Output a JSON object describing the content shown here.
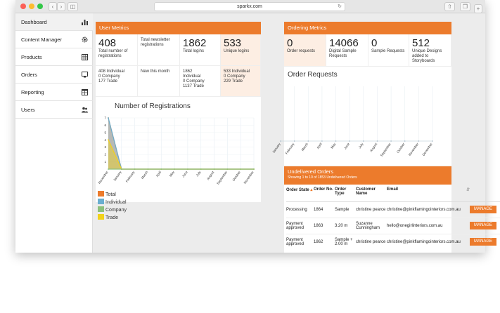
{
  "browser": {
    "url": "sparkx.com"
  },
  "sidebar": {
    "items": [
      {
        "label": "Dashboard"
      },
      {
        "label": "Content Manager"
      },
      {
        "label": "Products"
      },
      {
        "label": "Orders"
      },
      {
        "label": "Reporting"
      },
      {
        "label": "Users"
      }
    ]
  },
  "user_metrics": {
    "title": "User Metrics",
    "cells": [
      {
        "value": "408",
        "label": "Total number of registrations"
      },
      {
        "value": "",
        "label": "Total newsletter registrations"
      },
      {
        "value": "1862",
        "label": "Total logins"
      },
      {
        "value": "533",
        "label": "Unique logins"
      }
    ],
    "subcells": [
      {
        "lines": [
          "408 Individual",
          "0 Company",
          "177 Trade"
        ]
      },
      {
        "lines": [
          "New this month"
        ]
      },
      {
        "lines": [
          "1862",
          "Individual",
          "0 Company",
          "1137 Trade"
        ]
      },
      {
        "lines": [
          "533 Individual",
          "0 Company",
          "229 Trade"
        ]
      }
    ]
  },
  "registrations_chart": {
    "title": "Number of Registrations",
    "legend": [
      "Total",
      "Individual",
      "Company",
      "Trade"
    ]
  },
  "ordering_metrics": {
    "title": "Ordering Metrics",
    "cells": [
      {
        "value": "0",
        "label": "Order requests"
      },
      {
        "value": "14066",
        "label": "Digital Sample Requests"
      },
      {
        "value": "0",
        "label": "Sample Requests"
      },
      {
        "value": "512",
        "label": "Unique Designs added to Storyboards"
      }
    ]
  },
  "order_requests_chart": {
    "title": "Order Requests"
  },
  "undelivered": {
    "title": "Undelivered Orders",
    "subtitle": "Showing 1 to 10 of 1853 Undelivered Orders",
    "columns": [
      "Order State",
      "Order No.",
      "Order Type",
      "Customer Name",
      "Email",
      ""
    ],
    "rows": [
      {
        "state": "Processing",
        "no": "1864",
        "type": "Sample",
        "customer": "christine pearce",
        "email": "christine@pinkflamingointeriors.com.au",
        "action": "MANAGE"
      },
      {
        "state": "Payment approved",
        "no": "1863",
        "type": "3.20 m",
        "customer": "Suzanne Cunningham",
        "email": "hello@onegirlinteriors.com.au",
        "action": "MANAGE"
      },
      {
        "state": "Payment approved",
        "no": "1862",
        "type": "Sample + 2.00 m",
        "customer": "christine pearce",
        "email": "christine@pinkflamingointeriors.com.au",
        "action": "MANAGE"
      }
    ]
  },
  "chart_data": [
    {
      "type": "area",
      "title": "Number of Registrations",
      "categories": [
        "November",
        "January",
        "February",
        "March",
        "April",
        "May",
        "June",
        "July",
        "August",
        "September",
        "October",
        "November"
      ],
      "yticks": [
        1,
        2,
        3,
        4,
        5,
        6,
        7
      ],
      "ylim": [
        0,
        7
      ],
      "grid": true,
      "legend_position": "bottom-left",
      "series": [
        {
          "name": "Total",
          "color": "#ec7b2c",
          "values": [
            7,
            0,
            0,
            0,
            0,
            0,
            0,
            0,
            0,
            0,
            0,
            0
          ]
        },
        {
          "name": "Individual",
          "color": "#6aaed0",
          "values": [
            7,
            0,
            0,
            0,
            0,
            0,
            0,
            0,
            0,
            0,
            0,
            0
          ]
        },
        {
          "name": "Company",
          "color": "#8cc07c",
          "values": [
            0,
            0,
            0,
            0,
            0,
            0,
            0,
            0,
            0,
            0,
            0,
            0
          ]
        },
        {
          "name": "Trade",
          "color": "#f2d21b",
          "values": [
            4,
            0,
            0,
            0,
            0,
            0,
            0,
            0,
            0,
            0,
            0,
            0
          ]
        }
      ]
    },
    {
      "type": "line",
      "title": "Order Requests",
      "categories": [
        "January",
        "February",
        "March",
        "April",
        "May",
        "June",
        "July",
        "August",
        "September",
        "October",
        "November",
        "December"
      ],
      "values": [
        0,
        0,
        0,
        0,
        0,
        0,
        0,
        0,
        0,
        0,
        0,
        0
      ],
      "grid": true
    }
  ],
  "icons": {
    "sidebar": [
      "bar-chart-icon",
      "gear-icon",
      "grid-icon",
      "monitor-icon",
      "table-icon",
      "users-icon"
    ]
  }
}
